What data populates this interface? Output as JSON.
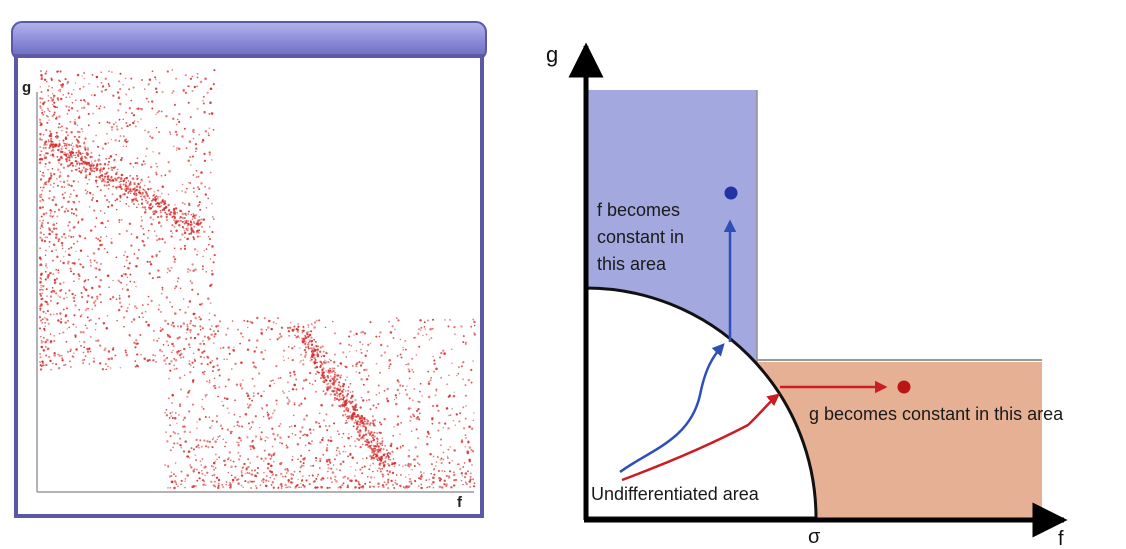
{
  "left_panel": {
    "x_axis_label": "f",
    "y_axis_label": "g",
    "frame_color": "#5b58a6",
    "titlebar_color": "#7f7fd0",
    "dot_color": "#d42a2a"
  },
  "right_panel": {
    "x_axis_label": "f",
    "y_axis_label": "g",
    "sigma_label": "σ",
    "blue_region_text_lines": [
      "f becomes",
      "constant in",
      "this area"
    ],
    "orange_region_text": "g becomes constant in this area",
    "undifferentiated_text": "Undifferentiated area",
    "blue_region_color": "#a3a8de",
    "orange_region_color": "#e6b094",
    "blue_arrow_color": "#2f4fb8",
    "red_arrow_color": "#c81e24"
  }
}
